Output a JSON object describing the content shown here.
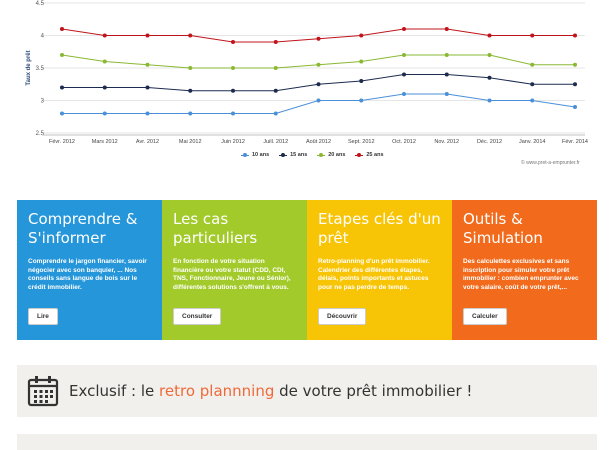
{
  "chart_data": {
    "type": "line",
    "ylabel": "Taux de prêt",
    "ylim": [
      2.5,
      4.5
    ],
    "yticks": [
      "2.5",
      "3",
      "3.5",
      "4",
      "4.5"
    ],
    "categories": [
      "Févr. 2012",
      "Mars 2012",
      "Avr. 2012",
      "Mai 2012",
      "Juin 2012",
      "Juill. 2012",
      "Août 2012",
      "Sept. 2012",
      "Oct. 2012",
      "Nov. 2012",
      "Déc. 2012",
      "Janv. 2014",
      "Févr. 2014"
    ],
    "series": [
      {
        "name": "10 ans",
        "color": "#4a90d9",
        "values": [
          2.8,
          2.8,
          2.8,
          2.8,
          2.8,
          2.8,
          3.0,
          3.0,
          3.1,
          3.1,
          3.0,
          3.0,
          2.9
        ]
      },
      {
        "name": "15 ans",
        "color": "#1d2b4f",
        "values": [
          3.2,
          3.2,
          3.2,
          3.15,
          3.15,
          3.15,
          3.25,
          3.3,
          3.4,
          3.4,
          3.35,
          3.25,
          3.25
        ]
      },
      {
        "name": "20 ans",
        "color": "#8ab833",
        "values": [
          3.7,
          3.6,
          3.55,
          3.5,
          3.5,
          3.5,
          3.55,
          3.6,
          3.7,
          3.7,
          3.7,
          3.55,
          3.55
        ]
      },
      {
        "name": "25 ans",
        "color": "#c0141b",
        "values": [
          4.1,
          4.0,
          4.0,
          4.0,
          3.9,
          3.9,
          3.95,
          4.0,
          4.1,
          4.1,
          4.0,
          4.0,
          4.0
        ]
      }
    ],
    "grid": true,
    "legend": "bottom-center",
    "credit": "© www.pret-a-emprunter.fr"
  },
  "cards": [
    {
      "title": "Comprendre & S'informer",
      "desc": "Comprendre le jargon financier, savoir négocier avec son banquier, ... Nos conseils sans langue de bois sur le crédit immobilier.",
      "button": "Lire",
      "color": "#2596d9"
    },
    {
      "title": "Les cas particuliers",
      "desc": "En fonction de votre situation financière ou votre statut (CDD, CDI, TNS, Fonctionnaire, Jeune ou Sénior), différentes solutions s'offrent à vous.",
      "button": "Consulter",
      "color": "#a3ca2b"
    },
    {
      "title": "Etapes clés d'un prêt",
      "desc": "Retro-planning d'un prêt immobilier. Calendrier des différentes étapes, délais, points importants et astuces pour ne pas perdre de temps.",
      "button": "Découvrir",
      "color": "#f8c406"
    },
    {
      "title": "Outils & Simulation",
      "desc": "Des calculettes exclusives et sans inscription pour simuler votre prêt immobilier : combien emprunter avec votre salaire, coût de votre prêt,...",
      "button": "Calculer",
      "color": "#f26b1d"
    }
  ],
  "banner": {
    "prefix": "Exclusif : le ",
    "link": "retro plannning",
    "suffix": " de votre prêt immobilier !"
  }
}
